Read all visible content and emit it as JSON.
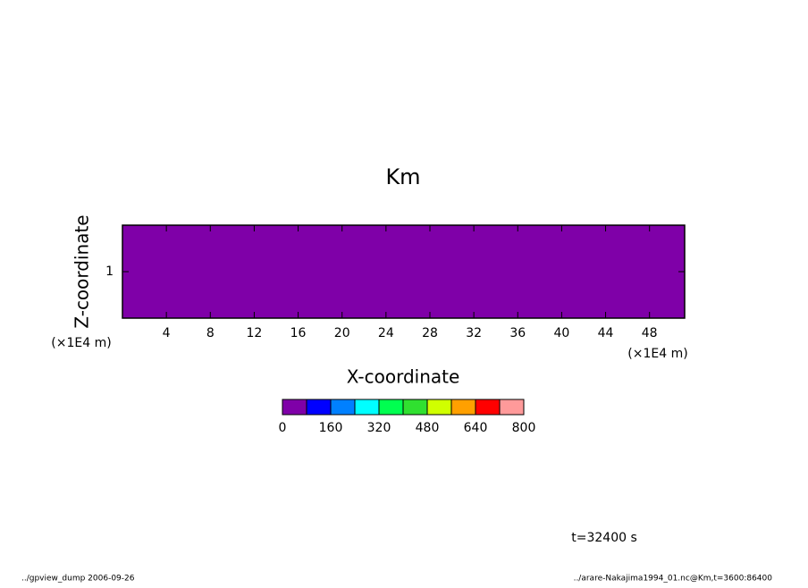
{
  "chart_data": {
    "type": "contour",
    "title": "Km",
    "xlabel": "X-coordinate",
    "ylabel": "Z-coordinate",
    "xunit": "(×1E4 m)",
    "yunit": "(×1E4 m)",
    "xlim": [
      0,
      51.2
    ],
    "xticks": [
      4,
      8,
      12,
      16,
      20,
      24,
      28,
      32,
      36,
      40,
      44,
      48
    ],
    "ylim": [
      0,
      2
    ],
    "yticks": [
      1
    ],
    "colorbar": {
      "levels": [
        0,
        80,
        160,
        240,
        320,
        400,
        480,
        560,
        640,
        720,
        800
      ],
      "colors": [
        "#7f00a8",
        "#0000ff",
        "#0080ff",
        "#00ffff",
        "#00ff50",
        "#30e030",
        "#d0ff00",
        "#ffa000",
        "#ff0000",
        "#ff9a9a"
      ],
      "ticks": [
        0,
        160,
        320,
        480,
        640,
        800
      ]
    },
    "time_label": "t=32400 s"
  },
  "footer": {
    "left": "../gpview_dump  2006-09-26",
    "right": "../arare-Nakajima1994_01.nc@Km,t=3600:86400"
  }
}
